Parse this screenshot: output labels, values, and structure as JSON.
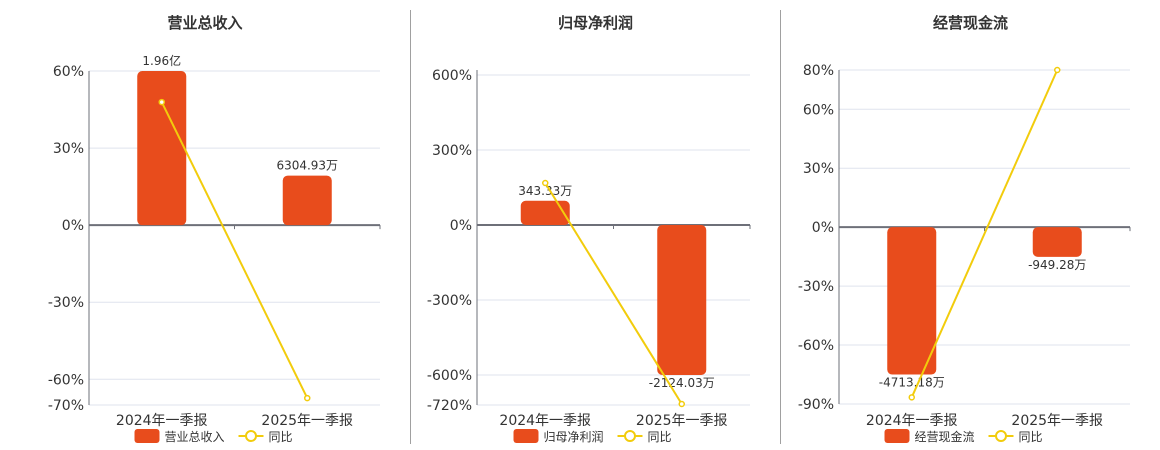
{
  "colors": {
    "bar": "#e84c1c",
    "line": "#f2cc0c",
    "grid": "#dfe3ee",
    "axis": "#6e7079",
    "text": "#333333"
  },
  "chart_data": [
    {
      "type": "bar+line",
      "title": "营业总收入",
      "categories": [
        "2024年一季报",
        "2025年一季报"
      ],
      "bar_series": {
        "name": "营业总收入",
        "values": [
          19600,
          6304.93
        ],
        "unit": "万",
        "labels": [
          "1.96亿",
          "6304.93万"
        ]
      },
      "line_series": {
        "name": "同比",
        "values": [
          47.9,
          -67.3
        ],
        "unit": "%"
      },
      "y_ticks": [
        60,
        30,
        0,
        -30,
        -60,
        -70
      ],
      "y_tick_labels": [
        "60%",
        "30%",
        "0%",
        "-30%",
        "-60%",
        "-70%"
      ],
      "ylim": [
        -70,
        60
      ],
      "grid": true,
      "legend": "bottom"
    },
    {
      "type": "bar+line",
      "title": "归母净利润",
      "categories": [
        "2024年一季报",
        "2025年一季报"
      ],
      "bar_series": {
        "name": "归母净利润",
        "values": [
          343.33,
          -2124.03
        ],
        "unit": "万",
        "labels": [
          "343.33万",
          "-2124.03万"
        ]
      },
      "line_series": {
        "name": "同比",
        "values": [
          168,
          -716
        ],
        "unit": "%"
      },
      "y_ticks": [
        600,
        300,
        0,
        -300,
        -600,
        -720
      ],
      "y_tick_labels": [
        "600%",
        "300%",
        "0%",
        "-300%",
        "-600%",
        "-720%"
      ],
      "ylim": [
        -720,
        620
      ],
      "grid": true,
      "legend": "bottom"
    },
    {
      "type": "bar+line",
      "title": "经营现金流",
      "categories": [
        "2024年一季报",
        "2025年一季报"
      ],
      "bar_series": {
        "name": "经营现金流",
        "values": [
          -4713.18,
          -949.28
        ],
        "unit": "万",
        "labels": [
          "-4713.18万",
          "-949.28万"
        ]
      },
      "line_series": {
        "name": "同比",
        "values": [
          -86.6,
          80
        ],
        "unit": "%"
      },
      "y_ticks": [
        80,
        60,
        30,
        0,
        -30,
        -60,
        -90
      ],
      "y_tick_labels": [
        "80%",
        "60%",
        "30%",
        "0%",
        "-30%",
        "-60%",
        "-90%"
      ],
      "ylim": [
        -90,
        80
      ],
      "grid": true,
      "legend": "bottom"
    }
  ]
}
